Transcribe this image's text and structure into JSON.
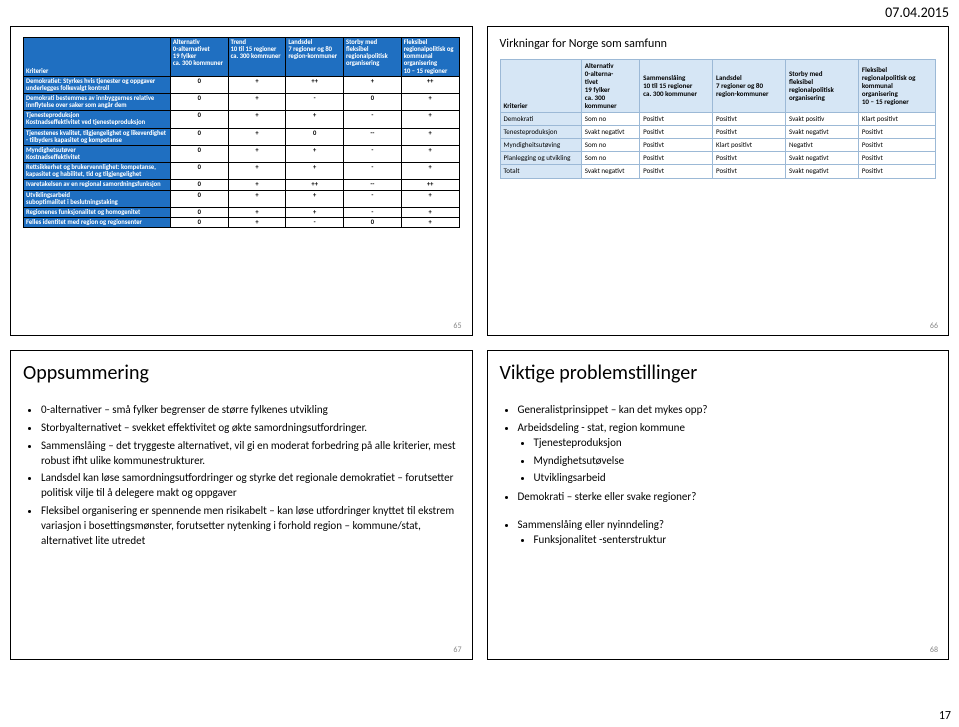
{
  "date": "07.04.2015",
  "pageNumber": "17",
  "slide1": {
    "slidenum": "65",
    "header": {
      "c0": "Kriterier",
      "c1_l1": "Alternativ",
      "c1_l2": "0-alternativet",
      "c1_l3": "19 fylker",
      "c1_l4": "ca. 300 kommuner",
      "c2_l1": "Trend",
      "c2_l2": "10 til 15 regioner",
      "c2_l3": "ca. 300 kommuner",
      "c3_l1": "Landsdel",
      "c3_l2": "7 regioner og 80",
      "c3_l3": "region-kommuner",
      "c4_l1": "Storby med fleksibel",
      "c4_l2": "regionalpolitisk",
      "c4_l3": "organisering",
      "c5_l1": "Fleksibel",
      "c5_l2": "regionalpolitisk og",
      "c5_l3": "kommunal organisering",
      "c5_l4": "10 – 15 regioner"
    },
    "rows": [
      {
        "label": "Demokratiet: Styrkes hvis tjenester og oppgaver underlegges folkevalgt kontroll",
        "v": [
          "0",
          "+",
          "++",
          "+",
          "++"
        ]
      },
      {
        "label": "Demokrati bestemmes av innbyggernes relative innflytelse over saker som angår dem",
        "v": [
          "0",
          "+",
          "-",
          "0",
          "+"
        ]
      },
      {
        "label": "Tjenesteproduksjon\nKostnadseffektivitet ved tjenesteproduksjon",
        "v": [
          "0",
          "+",
          "+",
          "-",
          "+"
        ]
      },
      {
        "label": "Tjenestenes kvalitet, tilgjengelighet og likeverdighet - tilbyders kapasitet og kompetanse",
        "v": [
          "0",
          "+",
          "0",
          "--",
          "+"
        ]
      },
      {
        "label": "Myndighetsutøver\nKostnadseffektivitet",
        "v": [
          "0",
          "+",
          "+",
          "-",
          "+"
        ]
      },
      {
        "label": "Rettsikkerhet og brukervennlighet: kompetanse, kapasitet og habilitet, tid og tilgjengelighet",
        "v": [
          "0",
          "+",
          "+",
          "-",
          "+"
        ]
      },
      {
        "label": "Ivaretakelsen av en regional samordningsfunksjon",
        "v": [
          "0",
          "+",
          "++",
          "--",
          "++"
        ]
      },
      {
        "label": "Utviklingsarbeid\nsuboptimalitet i beslutningstaking",
        "v": [
          "0",
          "+",
          "+",
          "-",
          "+"
        ]
      },
      {
        "label": "Regionenes funksjonalitet og homogenitet",
        "v": [
          "0",
          "+",
          "+",
          "-",
          "+"
        ]
      },
      {
        "label": "Felles identitet med region og regionsenter",
        "v": [
          "0",
          "+",
          "-",
          "0",
          "+"
        ]
      }
    ]
  },
  "slide2": {
    "slidenum": "66",
    "title": "Virkningar for Norge som samfunn",
    "header": {
      "c0": "Kriterier",
      "c1a": "Alternativ",
      "c1": "0-alterna-\ntivet\n19 fylker\nca. 300\nkommuner",
      "c2": "Sammenslåing\n10 til 15 regioner\nca. 300 kommuner",
      "c3": "Landsdel\n7 regioner og 80\nregion-kommuner",
      "c4": "Storby med\nfleksibel\nregionalpolitisk\norganisering",
      "c5": "Fleksibel\nregionalpolitisk og\nkommunal\norganisering\n10 – 15 regioner"
    },
    "rows": [
      {
        "label": "Demokrati",
        "v": [
          "Som no",
          "Positivt",
          "Positivt",
          "Svakt positiv",
          "Klart positivt"
        ]
      },
      {
        "label": "Tenesteproduksjon",
        "v": [
          "Svakt negativt",
          "Positivt",
          "Positivt",
          "Svakt negativt",
          "Positivt"
        ]
      },
      {
        "label": "Myndigheitsutøving",
        "v": [
          "Som no",
          "Positivt",
          "Klart positivt",
          "Negativt",
          "Positivt"
        ]
      },
      {
        "label": "Planlegging og utvikling",
        "v": [
          "Som no",
          "Positivt",
          "Positivt",
          "Svakt negativt",
          "Positivt"
        ]
      },
      {
        "label": "Totalt",
        "v": [
          "Svakt negativt",
          "Positivt",
          "Positivt",
          "Svakt negativt",
          "Positivt"
        ]
      }
    ]
  },
  "slide3": {
    "slidenum": "67",
    "title": "Oppsummering",
    "bullets": [
      "0-alternativer – små fylker begrenser de større fylkenes utvikling",
      "Storbyalternativet – svekket effektivitet og økte samordningsutfordringer.",
      "Sammenslåing – det tryggeste alternativet, vil gi en moderat forbedring på alle kriterier, mest robust ifht ulike kommunestrukturer.",
      "Landsdel kan løse samordningsutfordringer og styrke det regionale demokratiet – forutsetter politisk vilje til å delegere makt og oppgaver",
      "Fleksibel organisering er spennende men risikabelt – kan løse utfordringer knyttet til ekstrem variasjon i bosettingsmønster, forutsetter nytenking i forhold region – kommune/stat, alternativet lite utredet"
    ]
  },
  "slide4": {
    "slidenum": "68",
    "title": "Viktige problemstillinger",
    "bullets": [
      {
        "text": "Generalistprinsippet – kan det mykes opp?"
      },
      {
        "text": "Arbeidsdeling - stat, region kommune",
        "sub": [
          "Tjenesteproduksjon",
          "Myndighetsutøvelse",
          "Utviklingsarbeid"
        ]
      },
      {
        "text": "Demokrati – sterke eller svake regioner?"
      },
      {
        "text": "",
        "spacer": true
      },
      {
        "text": "Sammenslåing eller nyinndeling?",
        "sub": [
          "Funksjonalitet -senterstruktur"
        ]
      }
    ]
  }
}
